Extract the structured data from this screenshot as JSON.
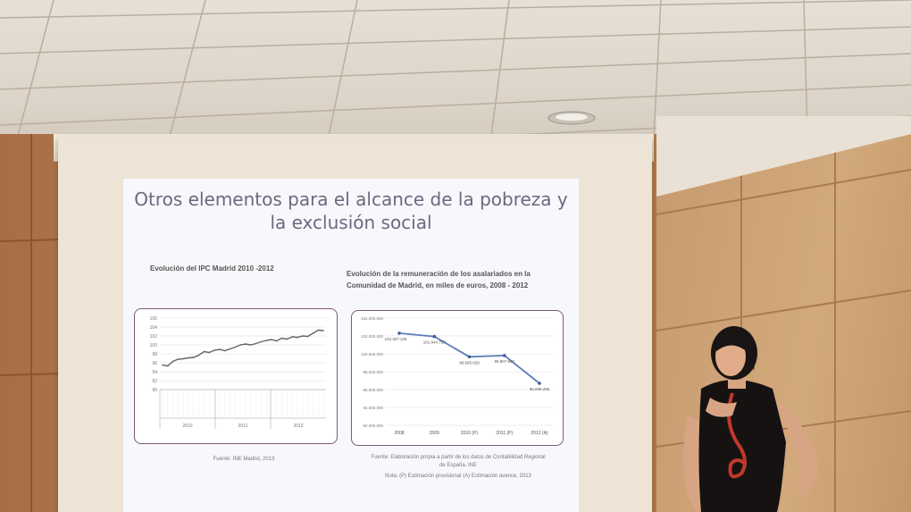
{
  "slide": {
    "title_line1": "Otros elementos para el alcance de la pobreza y",
    "title_line2": "la exclusión social",
    "left_chart_title": "Evolución del IPC Madrid 2010 -2012",
    "left_source": "Fuente: INE Madrid, 2013",
    "right_chart_title_line1": "Evolución de la remuneración de los asalariados en la",
    "right_chart_title_line2": "Comunidad de Madrid, en miles de euros, 2008 - 2012",
    "right_source_line1": "Fuente: Elaboración propia a partir de los datos de Contabilidad Regional",
    "right_source_line2": "de España. INE",
    "right_note": "Nota: (P) Estimación provisional (A) Estimación avance, 2013"
  },
  "chart_data": [
    {
      "type": "line",
      "title": "Evolución del IPC Madrid 2010 -2012",
      "ylim": [
        90,
        106
      ],
      "yticks": [
        "106",
        "104",
        "102",
        "100",
        "98",
        "96",
        "94",
        "92",
        "90"
      ],
      "groups": [
        "2010",
        "2011",
        "2012"
      ],
      "series": [
        {
          "values": [
            95.5,
            95.3,
            96.3,
            96.8,
            96.9,
            97.1,
            97.2,
            97.7,
            98.5,
            98.3,
            98.8,
            99.0,
            98.7,
            99.1,
            99.5,
            100.0,
            100.2,
            100.0,
            100.3,
            100.7,
            101.0,
            101.2,
            100.9,
            101.5,
            101.3,
            101.8,
            101.7,
            102.0,
            101.9,
            102.6,
            103.3,
            103.2
          ]
        }
      ]
    },
    {
      "type": "line",
      "title": "Evolución de la remuneración de los asalariados en la Comunidad de Madrid, en miles de euros, 2008 - 2012",
      "categories": [
        "2008",
        "2009",
        "2010 (P)",
        "2011 (P)",
        "2012 (A)"
      ],
      "yticks": [
        "104.000.000",
        "102.000.000",
        "100.000.000",
        "98.000.000",
        "96.000.000",
        "94.000.000",
        "92.000.000"
      ],
      "ylim": [
        92000000,
        104000000
      ],
      "series": [
        {
          "values": [
            102307106,
            101944753,
            99665028,
            99807582,
            96698255
          ],
          "labels": [
            "102.307.106",
            "101.944.753",
            "99.665.028",
            "99.807.582",
            "96.698.255"
          ]
        }
      ],
      "grid": true
    }
  ]
}
